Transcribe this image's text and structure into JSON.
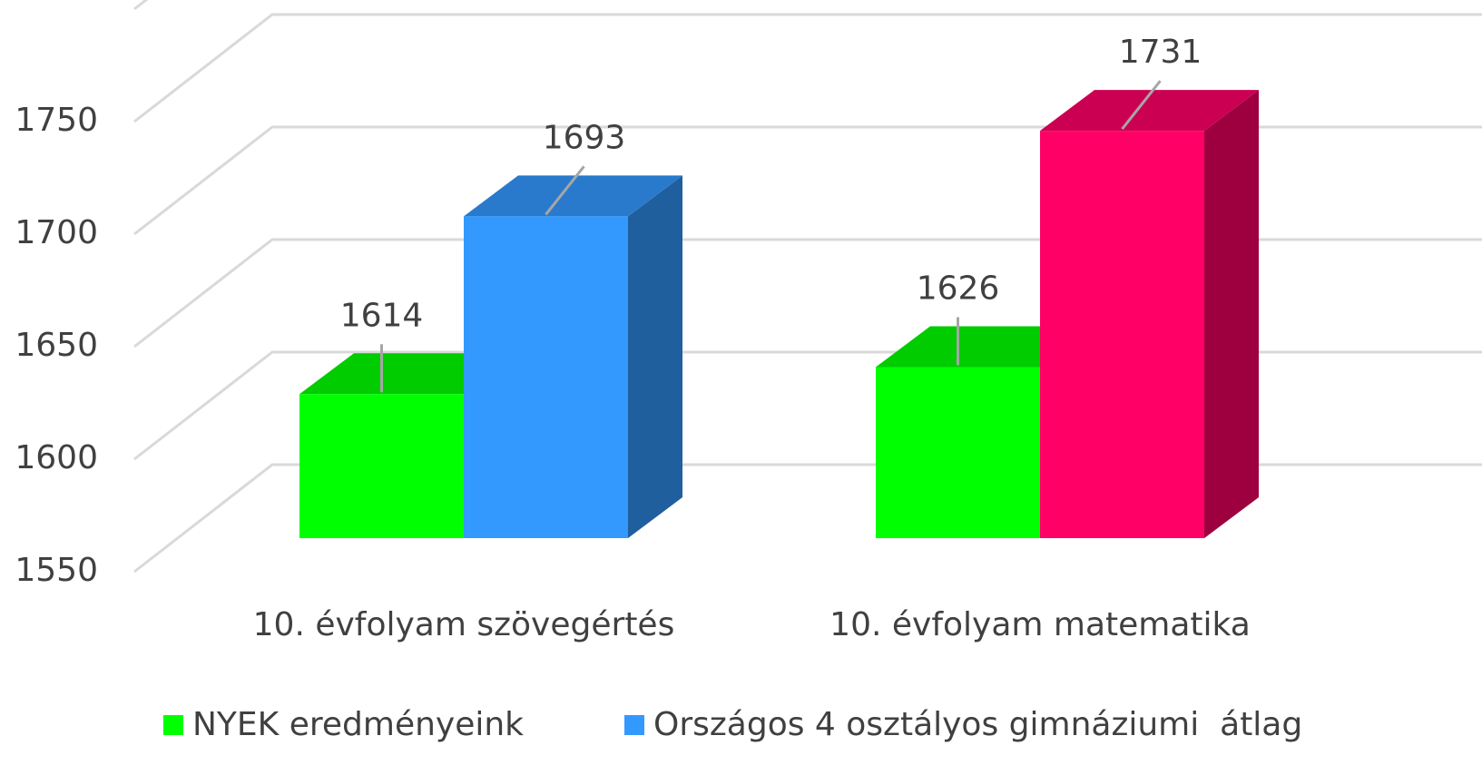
{
  "chart_data": {
    "type": "bar3d",
    "categories": [
      "10. évfolyam szövegértés",
      "10. évfolyam matematika"
    ],
    "series": [
      {
        "name": "NYEK eredményeink",
        "color": "#00ff00",
        "values": [
          1614,
          1626
        ]
      },
      {
        "name": "Országos 4 osztályos gimnáziumi  átlag",
        "color": "#3399ff",
        "colors": [
          "#3399ff",
          "#ff0066"
        ],
        "values": [
          1693,
          1731
        ]
      }
    ],
    "ylim": [
      1550,
      1800
    ],
    "yticks": [
      1550,
      1600,
      1650,
      1700,
      1750
    ],
    "grid": true,
    "legend": "bottom"
  }
}
